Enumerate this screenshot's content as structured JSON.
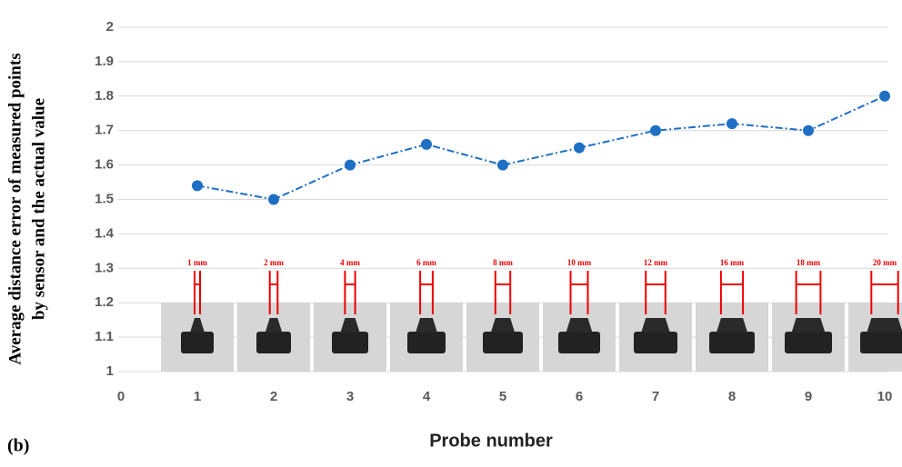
{
  "chart_data": {
    "type": "line",
    "panel_label": "(b)",
    "y_label": [
      "Average distance error of measured points",
      "by sensor and the actual value"
    ],
    "x_label": "Probe number",
    "x": [
      1,
      2,
      3,
      4,
      5,
      6,
      7,
      8,
      9,
      10
    ],
    "series": [
      {
        "color": "#1f6fc5",
        "values": [
          1.54,
          1.5,
          1.6,
          1.66,
          1.6,
          1.65,
          1.7,
          1.72,
          1.7,
          1.8
        ]
      }
    ],
    "annotations": [
      "1 mm",
      "2 mm",
      "4 mm",
      "6 mm",
      "8 mm",
      "10 mm",
      "12 mm",
      "16 mm",
      "18 mm",
      "20 mm"
    ],
    "xlim": [
      0,
      10
    ],
    "xticks": [
      0,
      1,
      2,
      3,
      4,
      5,
      6,
      7,
      8,
      9,
      10
    ],
    "ylim": [
      1,
      2
    ],
    "yticks": [
      1,
      1.1,
      1.2,
      1.3,
      1.4,
      1.5,
      1.6,
      1.7,
      1.8,
      1.9,
      2
    ],
    "grid": true
  }
}
